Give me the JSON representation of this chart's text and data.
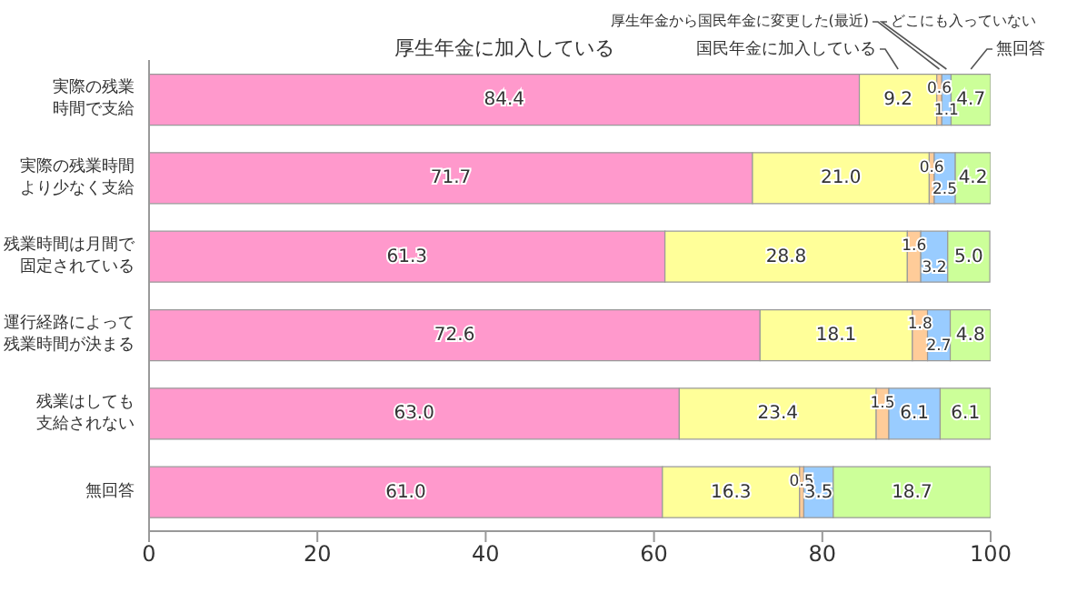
{
  "chart_data": {
    "type": "bar",
    "orientation": "horizontal",
    "stacked": true,
    "legend": "top",
    "categories": [
      "実際の残業時間で支給",
      "実際の残業時間より少なく支給",
      "残業時間は月間で固定されている",
      "運行経路によって残業時間が決まる",
      "残業はしても支給されない",
      "無回答"
    ],
    "series": [
      {
        "name": "厚生年金に加入している",
        "color": "#ff99cc",
        "values": [
          84.4,
          71.7,
          61.3,
          72.6,
          63.0,
          61.0
        ],
        "value_labels": [
          "84.4",
          "71.7",
          "61.3",
          "72.6",
          "63.0",
          "61.0"
        ]
      },
      {
        "name": "国民年金に加入している",
        "color": "#ffff99",
        "values": [
          9.2,
          21.0,
          28.8,
          18.1,
          23.4,
          16.3
        ],
        "value_labels": [
          "9.2",
          "21.0",
          "28.8",
          "18.1",
          "23.4",
          "16.3"
        ]
      },
      {
        "name": "厚生年金から国民年金に変更した(最近)",
        "color": "#ffcc99",
        "values": [
          0.6,
          0.6,
          1.6,
          1.8,
          1.5,
          0.5
        ],
        "value_labels": [
          "0.6",
          "0.6",
          "1.6",
          "1.8",
          "1.5",
          "0.5"
        ]
      },
      {
        "name": "どこにも入っていない",
        "color": "#99ccff",
        "values": [
          1.1,
          2.5,
          3.2,
          2.7,
          6.1,
          3.5
        ],
        "value_labels": [
          "1.1",
          "2.5",
          "3.2",
          "2.7",
          "6.1",
          "3.5"
        ]
      },
      {
        "name": "無回答",
        "color": "#ccff99",
        "values": [
          4.7,
          4.2,
          5.0,
          4.8,
          6.1,
          18.7
        ],
        "value_labels": [
          "4.7",
          "4.2",
          "5.0",
          "4.8",
          "6.1",
          "18.7"
        ]
      }
    ],
    "xlim": [
      0,
      100
    ],
    "xticks": [
      0,
      20,
      40,
      60,
      80,
      100
    ]
  }
}
